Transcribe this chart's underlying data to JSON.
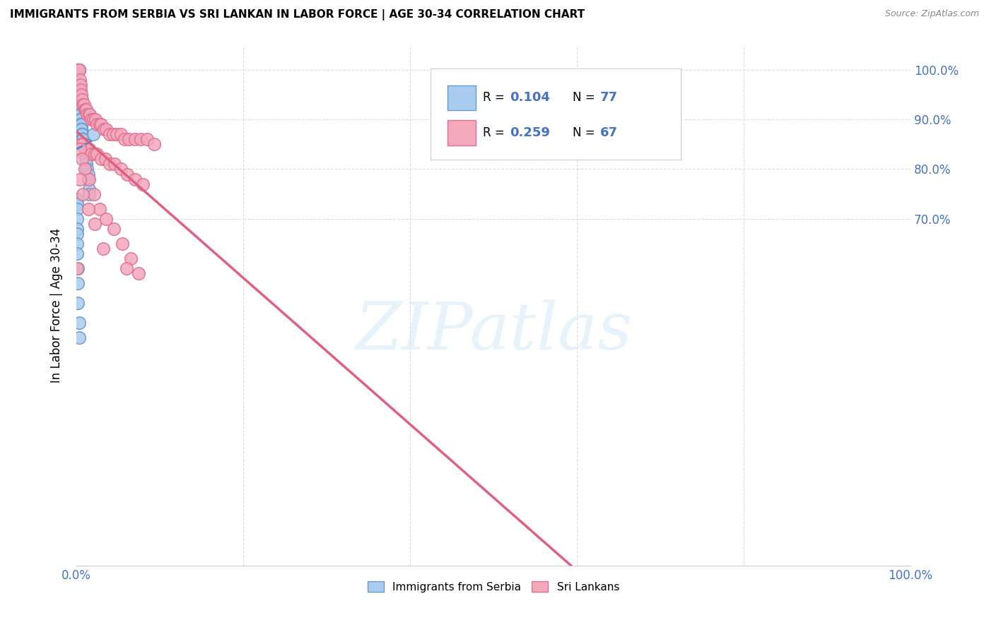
{
  "title": "IMMIGRANTS FROM SERBIA VS SRI LANKAN IN LABOR FORCE | AGE 30-34 CORRELATION CHART",
  "source": "Source: ZipAtlas.com",
  "ylabel": "In Labor Force | Age 30-34",
  "watermark": "ZIPatlas",
  "legend_r1": "0.104",
  "legend_n1": "77",
  "legend_r2": "0.259",
  "legend_n2": "67",
  "serbia_color": "#aaccee",
  "srilanka_color": "#f4a8bc",
  "serbia_edge": "#6699cc",
  "srilanka_edge": "#e07090",
  "trend_serbia_color": "#4488cc",
  "trend_srilanka_color": "#e06080",
  "serbia_x": [
    0.002,
    0.002,
    0.002,
    0.002,
    0.002,
    0.003,
    0.003,
    0.003,
    0.003,
    0.003,
    0.003,
    0.003,
    0.003,
    0.003,
    0.004,
    0.004,
    0.004,
    0.004,
    0.004,
    0.004,
    0.005,
    0.005,
    0.005,
    0.005,
    0.005,
    0.005,
    0.005,
    0.005,
    0.005,
    0.006,
    0.006,
    0.006,
    0.006,
    0.006,
    0.006,
    0.006,
    0.007,
    0.007,
    0.007,
    0.007,
    0.007,
    0.007,
    0.008,
    0.008,
    0.008,
    0.008,
    0.008,
    0.009,
    0.009,
    0.009,
    0.01,
    0.01,
    0.01,
    0.01,
    0.011,
    0.011,
    0.012,
    0.012,
    0.013,
    0.014,
    0.014,
    0.015,
    0.015,
    0.001,
    0.001,
    0.001,
    0.001,
    0.001,
    0.001,
    0.001,
    0.001,
    0.002,
    0.002,
    0.002,
    0.003,
    0.003,
    0.02
  ],
  "serbia_y": [
    1.0,
    1.0,
    1.0,
    1.0,
    1.0,
    1.0,
    1.0,
    1.0,
    0.97,
    0.97,
    0.96,
    0.95,
    0.94,
    0.93,
    0.93,
    0.92,
    0.92,
    0.91,
    0.91,
    0.91,
    0.91,
    0.91,
    0.91,
    0.9,
    0.9,
    0.9,
    0.9,
    0.89,
    0.89,
    0.89,
    0.89,
    0.88,
    0.88,
    0.88,
    0.88,
    0.87,
    0.87,
    0.87,
    0.87,
    0.87,
    0.86,
    0.86,
    0.86,
    0.86,
    0.86,
    0.86,
    0.85,
    0.85,
    0.85,
    0.85,
    0.84,
    0.84,
    0.84,
    0.83,
    0.83,
    0.83,
    0.82,
    0.81,
    0.8,
    0.79,
    0.78,
    0.76,
    0.75,
    0.74,
    0.73,
    0.72,
    0.7,
    0.68,
    0.67,
    0.65,
    0.63,
    0.6,
    0.57,
    0.53,
    0.49,
    0.46,
    0.87
  ],
  "srilanka_x": [
    0.002,
    0.003,
    0.004,
    0.005,
    0.005,
    0.006,
    0.007,
    0.008,
    0.009,
    0.01,
    0.011,
    0.012,
    0.013,
    0.015,
    0.016,
    0.018,
    0.02,
    0.023,
    0.025,
    0.028,
    0.03,
    0.033,
    0.036,
    0.04,
    0.044,
    0.048,
    0.053,
    0.058,
    0.063,
    0.07,
    0.077,
    0.085,
    0.093,
    0.005,
    0.008,
    0.01,
    0.012,
    0.015,
    0.018,
    0.022,
    0.025,
    0.03,
    0.035,
    0.04,
    0.046,
    0.053,
    0.061,
    0.07,
    0.08,
    0.004,
    0.007,
    0.01,
    0.015,
    0.021,
    0.028,
    0.036,
    0.045,
    0.055,
    0.065,
    0.075,
    0.004,
    0.008,
    0.014,
    0.022,
    0.032,
    0.001,
    0.06
  ],
  "srilanka_y": [
    1.0,
    1.0,
    0.98,
    0.97,
    0.96,
    0.95,
    0.94,
    0.93,
    0.93,
    0.92,
    0.92,
    0.92,
    0.91,
    0.91,
    0.91,
    0.9,
    0.9,
    0.9,
    0.89,
    0.89,
    0.89,
    0.88,
    0.88,
    0.87,
    0.87,
    0.87,
    0.87,
    0.86,
    0.86,
    0.86,
    0.86,
    0.86,
    0.85,
    0.85,
    0.85,
    0.84,
    0.84,
    0.84,
    0.83,
    0.83,
    0.83,
    0.82,
    0.82,
    0.81,
    0.81,
    0.8,
    0.79,
    0.78,
    0.77,
    0.84,
    0.82,
    0.8,
    0.78,
    0.75,
    0.72,
    0.7,
    0.68,
    0.65,
    0.62,
    0.59,
    0.78,
    0.75,
    0.72,
    0.69,
    0.64,
    0.6,
    0.6
  ],
  "background_color": "#ffffff",
  "grid_color": "#dddddd",
  "xlim": [
    0.0,
    1.0
  ],
  "ylim": [
    0.0,
    1.05
  ],
  "ytick_vals": [
    0.7,
    0.8,
    0.9,
    1.0
  ],
  "ytick_labels": [
    "70.0%",
    "80.0%",
    "90.0%",
    "100.0%"
  ]
}
